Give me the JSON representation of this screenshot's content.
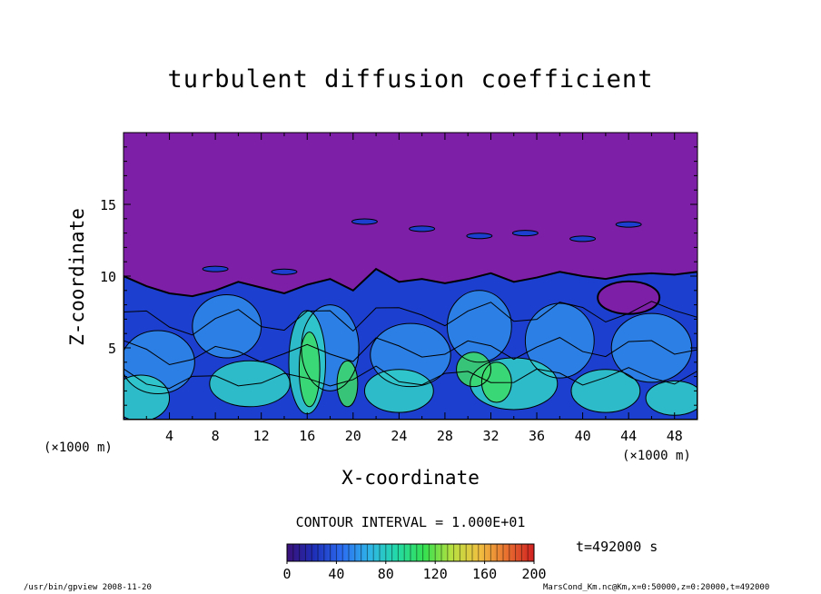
{
  "chart_data": {
    "type": "heatmap",
    "title": "turbulent diffusion coefficient",
    "xlabel": "X-coordinate",
    "ylabel": "Z-coordinate",
    "x_unit_label": "(×1000 m)",
    "y_unit_label": "(×1000 m)",
    "x_ticks": [
      4,
      8,
      12,
      16,
      20,
      24,
      28,
      32,
      36,
      40,
      44,
      48
    ],
    "y_ticks": [
      5,
      10,
      15
    ],
    "xlim": [
      0,
      50
    ],
    "ylim": [
      0,
      20
    ],
    "contour_interval_text": "CONTOUR INTERVAL = 1.000E+01",
    "contour_interval": 10,
    "colorbar": {
      "ticks": [
        0,
        40,
        80,
        120,
        160,
        200
      ],
      "range": [
        0,
        200
      ],
      "colors": [
        "#3a1078",
        "#1e2fb8",
        "#2b6cf0",
        "#2fb4e8",
        "#23d9a8",
        "#35e050",
        "#b8e040",
        "#f0c040",
        "#e87030",
        "#d02020"
      ]
    },
    "field_colors": {
      "above_turbulent_layer": "#7e1fa8",
      "turbulent_layer_low": "#1c3fd0",
      "turbulent_layer_mid": "#2f8be8",
      "turbulent_layer_high": "#30d0c8",
      "plume_peak": "#3ddc68"
    },
    "turbulent_layer_top_z": [
      10,
      9.3,
      8.8,
      8.6,
      9.0,
      9.6,
      9.2,
      8.8,
      9.4,
      9.8,
      9.0,
      10.5,
      9.6,
      9.8,
      9.5,
      9.8,
      10.2,
      9.6,
      9.9,
      10.3,
      10.0,
      9.8,
      10.1,
      10.2,
      10.1,
      10.3
    ],
    "time_label": "t=492000 s"
  },
  "footer": {
    "left": "/usr/bin/gpview  2008-11-20",
    "right": "MarsCond_Km.nc@Km,x=0:50000,z=0:20000,t=492000"
  }
}
